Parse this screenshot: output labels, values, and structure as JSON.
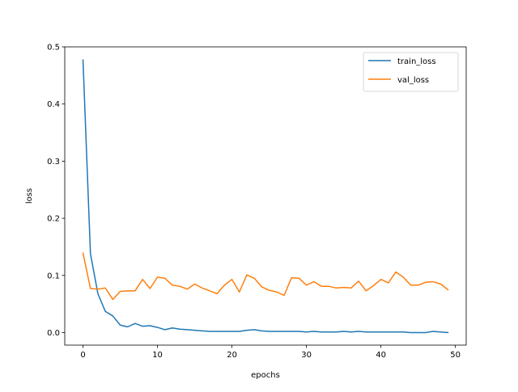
{
  "chart_data": {
    "type": "line",
    "title": "",
    "xlabel": "epochs",
    "ylabel": "loss",
    "xlim": [
      -2.45,
      51.45
    ],
    "ylim": [
      -0.022,
      0.5
    ],
    "xticks": [
      0,
      10,
      20,
      30,
      40,
      50
    ],
    "yticks": [
      0.0,
      0.1,
      0.2,
      0.3,
      0.4,
      0.5
    ],
    "xtick_labels": [
      "0",
      "10",
      "20",
      "30",
      "40",
      "50"
    ],
    "ytick_labels": [
      "0.0",
      "0.1",
      "0.2",
      "0.3",
      "0.4",
      "0.5"
    ],
    "grid": false,
    "legend_position": "top-right",
    "x": [
      0,
      1,
      2,
      3,
      4,
      5,
      6,
      7,
      8,
      9,
      10,
      11,
      12,
      13,
      14,
      15,
      16,
      17,
      18,
      19,
      20,
      21,
      22,
      23,
      24,
      25,
      26,
      27,
      28,
      29,
      30,
      31,
      32,
      33,
      34,
      35,
      36,
      37,
      38,
      39,
      40,
      41,
      42,
      43,
      44,
      45,
      46,
      47,
      48,
      49
    ],
    "series": [
      {
        "name": "train_loss",
        "color": "#1f77b4",
        "values": [
          0.477,
          0.138,
          0.068,
          0.037,
          0.029,
          0.013,
          0.01,
          0.016,
          0.011,
          0.012,
          0.009,
          0.005,
          0.008,
          0.006,
          0.005,
          0.004,
          0.003,
          0.002,
          0.002,
          0.002,
          0.002,
          0.002,
          0.004,
          0.005,
          0.003,
          0.002,
          0.002,
          0.002,
          0.002,
          0.002,
          0.001,
          0.002,
          0.001,
          0.001,
          0.001,
          0.002,
          0.001,
          0.002,
          0.001,
          0.001,
          0.001,
          0.001,
          0.001,
          0.001,
          0.0,
          0.0,
          0.0,
          0.002,
          0.001,
          0.0
        ]
      },
      {
        "name": "val_loss",
        "color": "#ff7f0e",
        "values": [
          0.139,
          0.077,
          0.076,
          0.078,
          0.058,
          0.072,
          0.073,
          0.073,
          0.093,
          0.077,
          0.097,
          0.095,
          0.083,
          0.081,
          0.076,
          0.085,
          0.078,
          0.073,
          0.068,
          0.083,
          0.093,
          0.071,
          0.101,
          0.095,
          0.08,
          0.074,
          0.071,
          0.065,
          0.096,
          0.095,
          0.083,
          0.089,
          0.081,
          0.081,
          0.078,
          0.079,
          0.078,
          0.09,
          0.073,
          0.082,
          0.093,
          0.087,
          0.106,
          0.097,
          0.083,
          0.083,
          0.088,
          0.089,
          0.085,
          0.075
        ]
      }
    ]
  }
}
